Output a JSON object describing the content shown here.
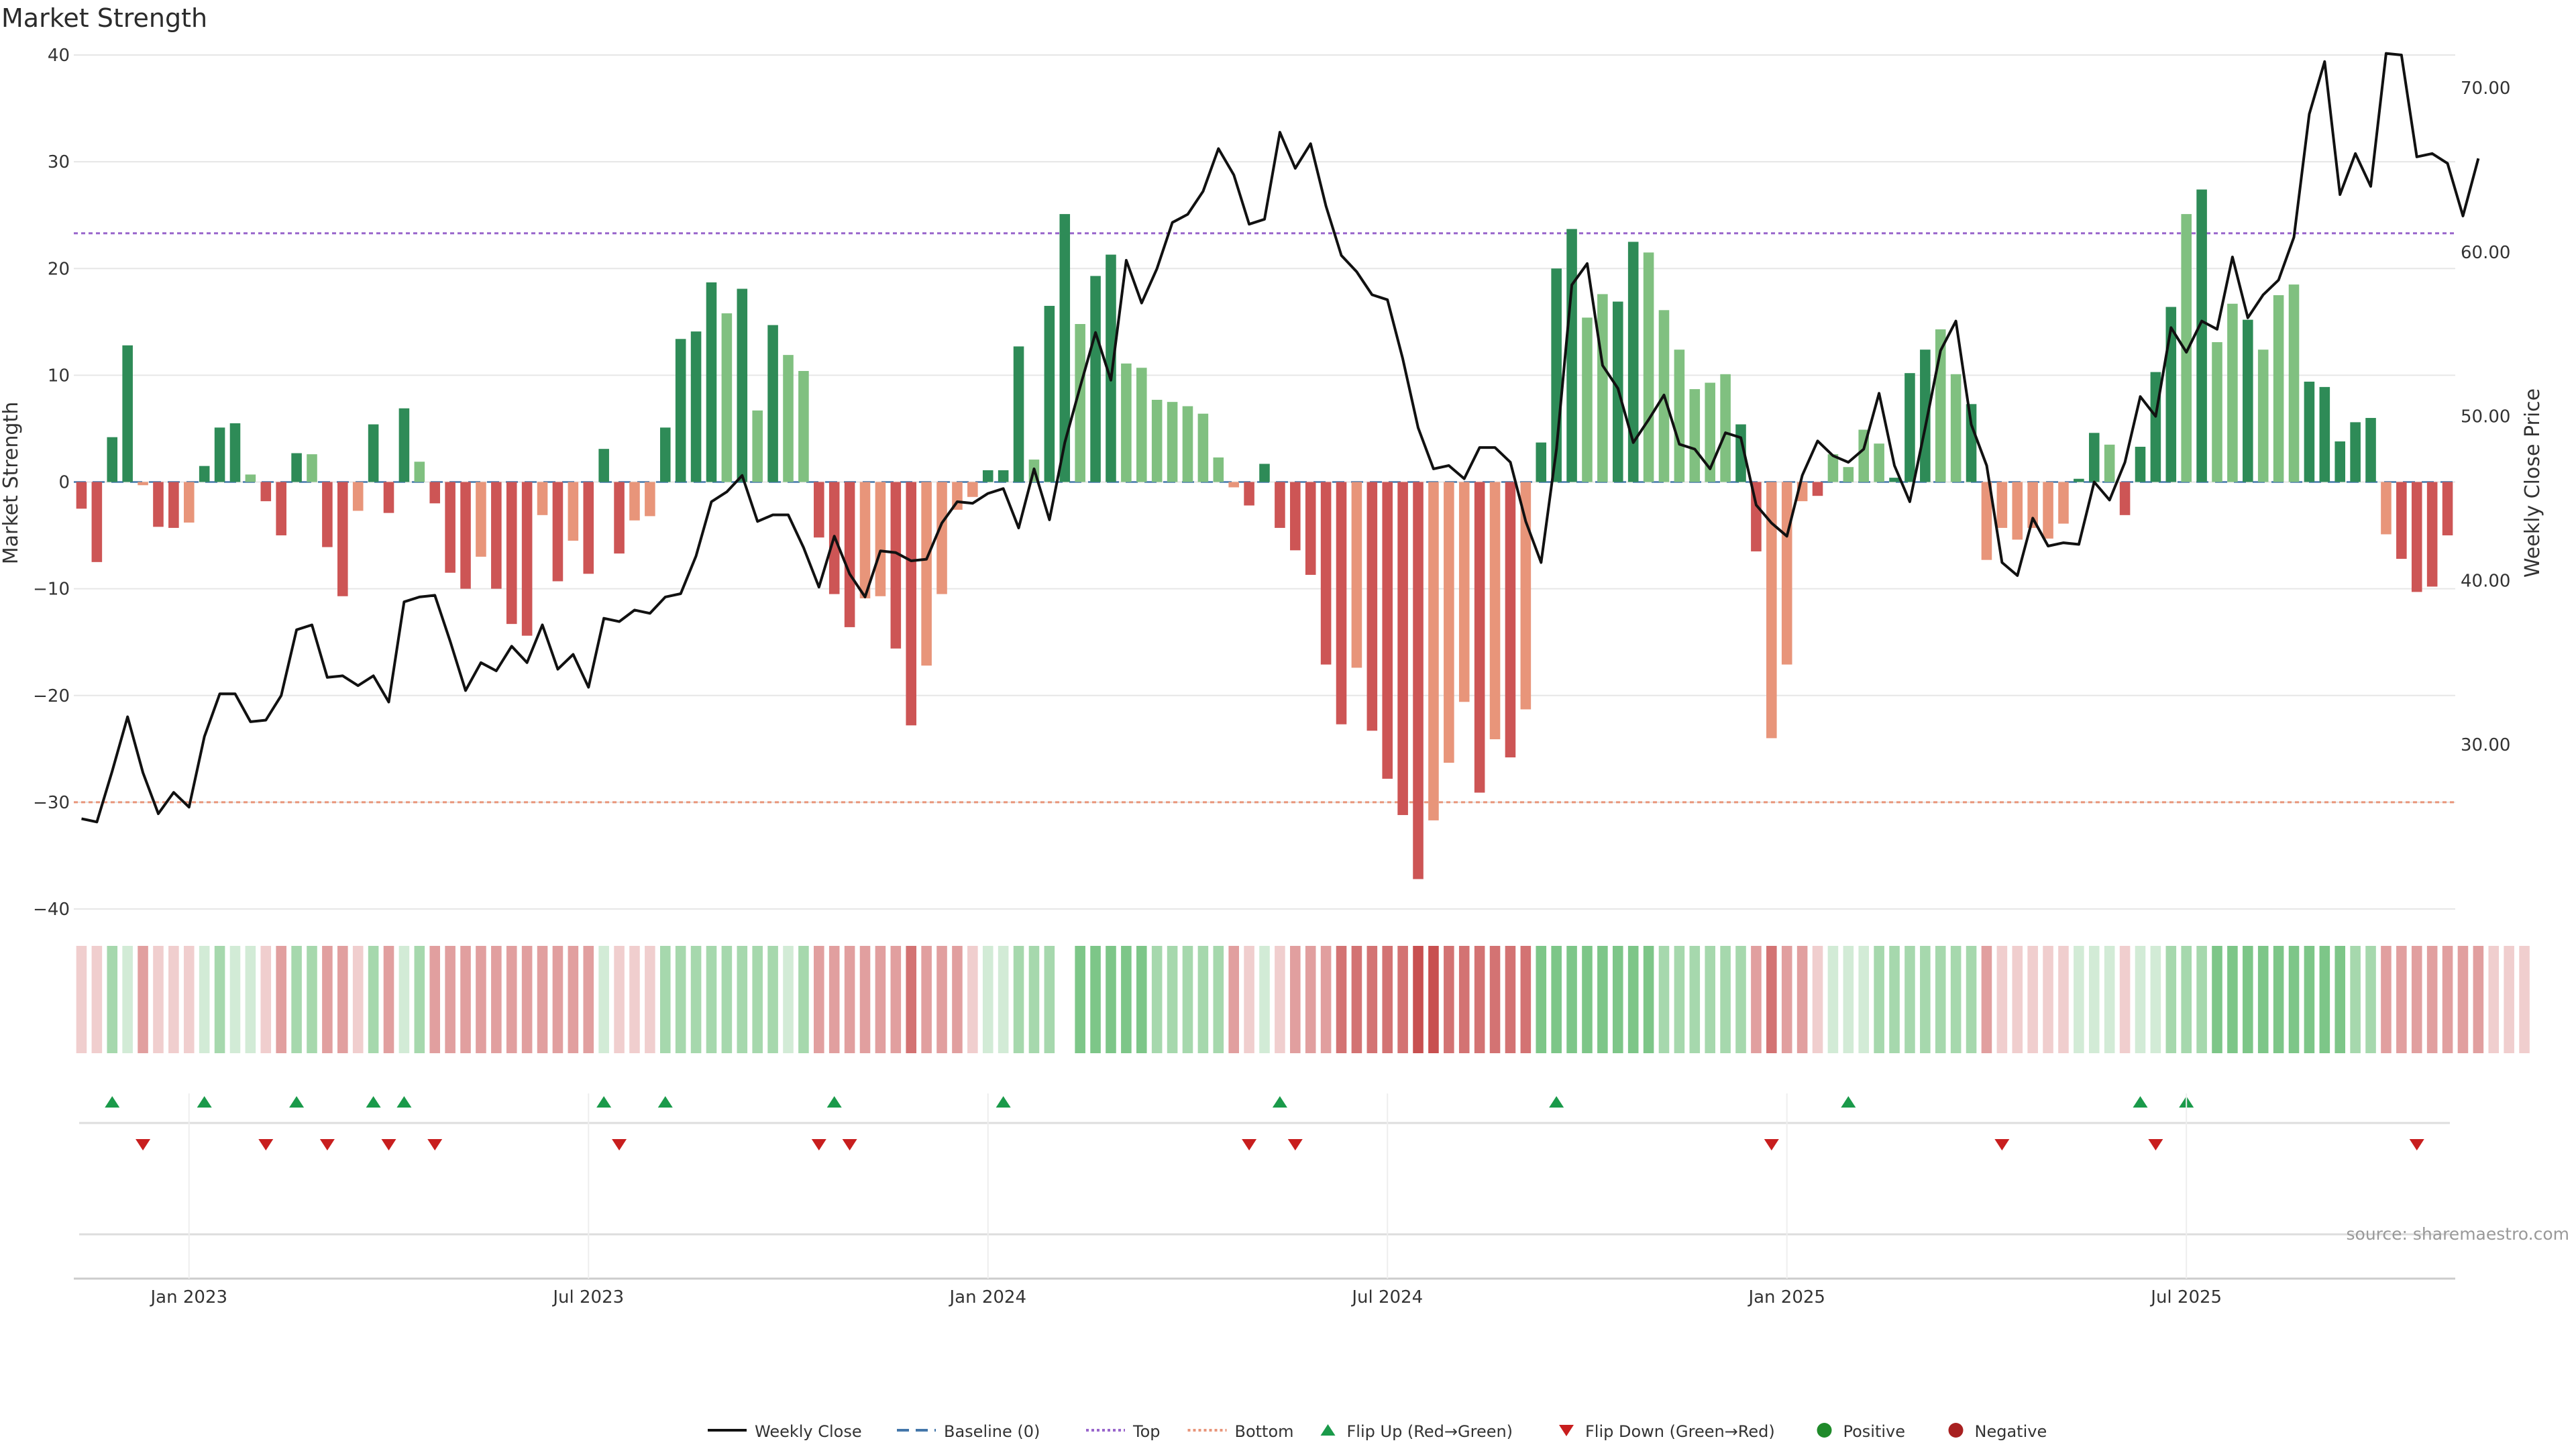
{
  "chart_data": {
    "type": "bar",
    "title": "Market Strength",
    "ylabel": "Market Strength",
    "ylabel_right": "Weekly Close Price",
    "ylim": [
      -40,
      40
    ],
    "ylim_right": [
      20,
      72
    ],
    "yticks": [
      -40,
      -30,
      -20,
      -10,
      0,
      10,
      20,
      30,
      40
    ],
    "yticks_right": [
      "30.00",
      "40.00",
      "50.00",
      "60.00",
      "70.00"
    ],
    "yticks_right_values": [
      30,
      40,
      50,
      60,
      70
    ],
    "xticks": [
      "Jan 2023",
      "Jul 2023",
      "Jan 2024",
      "Jul 2024",
      "Jan 2025",
      "Jul 2025"
    ],
    "xticks_index": [
      7,
      33,
      59,
      85,
      111,
      137
    ],
    "top_line": 23.3,
    "bottom_line": -30.0,
    "source": "source: sharemaestro.com",
    "colors": {
      "strong_pos": "#2e8b57",
      "weak_pos": "#80c080",
      "strong_neg": "#cd5555",
      "weak_neg": "#e8957a",
      "price": "#111111",
      "baseline": "#4477aa",
      "top": "#9966cc",
      "bottom": "#e8957a",
      "flip_up": "#1a9a4a",
      "flip_down": "#c81e1e",
      "positive": "#1f8a2a",
      "negative": "#a82020"
    },
    "strength": [
      -2.5,
      -7.5,
      4.2,
      12.8,
      -0.3,
      -4.2,
      -4.3,
      -3.8,
      1.5,
      5.1,
      5.5,
      0.7,
      -1.8,
      -5,
      2.7,
      2.6,
      -6.1,
      -10.7,
      -2.7,
      5.4,
      -2.9,
      6.9,
      1.9,
      -2,
      -8.5,
      -10,
      -7,
      -10,
      -13.3,
      -14.4,
      -3.1,
      -9.3,
      -5.5,
      -8.6,
      3.1,
      -6.7,
      -3.6,
      -3.2,
      5.1,
      13.4,
      14.1,
      18.7,
      15.8,
      18.1,
      6.7,
      14.7,
      11.9,
      10.4,
      -5.2,
      -10.5,
      -13.6,
      -10.9,
      -10.7,
      -15.6,
      -22.8,
      -17.2,
      -10.5,
      -2.6,
      -1.4,
      1.1,
      1.1,
      12.7,
      2.1,
      16.5,
      25.1,
      14.8,
      19.3,
      21.3,
      11.1,
      10.7,
      7.7,
      7.5,
      7.1,
      6.4,
      2.3,
      -0.5,
      -2.2,
      1.7,
      -4.3,
      -6.4,
      -8.7,
      -17.1,
      -22.7,
      -17.4,
      -23.3,
      -27.8,
      -31.2,
      -37.2,
      -31.7,
      -26.3,
      -20.6,
      -29.1,
      -24.1,
      -25.8,
      -21.3,
      3.7,
      20,
      23.7,
      15.4,
      17.6,
      16.9,
      22.5,
      21.5,
      16.1,
      12.4,
      8.7,
      9.3,
      10.1,
      5.4,
      -6.5,
      -24,
      -17.1,
      -1.8,
      -1.3,
      2.6,
      1.4,
      4.9,
      3.6,
      0.4,
      10.2,
      12.4,
      14.3,
      10.1,
      7.3,
      -7.3,
      -4.3,
      -5.4,
      -4.3,
      -5.3,
      -3.9,
      0.3,
      4.6,
      3.5,
      -3.1,
      3.3,
      10.3,
      16.4,
      25.1,
      27.4,
      13.1,
      16.7,
      15.2,
      12.4,
      17.5,
      18.5,
      9.4,
      8.9,
      3.8,
      5.6,
      6,
      -4.9,
      -7.2,
      -10.3,
      -9.8,
      -5
    ],
    "strength_weak": [
      0,
      0,
      0,
      0,
      1,
      0,
      0,
      1,
      0,
      0,
      0,
      1,
      0,
      0,
      0,
      1,
      0,
      0,
      1,
      0,
      0,
      0,
      1,
      0,
      0,
      0,
      1,
      0,
      0,
      0,
      1,
      0,
      1,
      0,
      0,
      0,
      1,
      1,
      0,
      0,
      0,
      0,
      1,
      0,
      1,
      0,
      1,
      1,
      0,
      0,
      0,
      1,
      1,
      0,
      0,
      1,
      1,
      1,
      1,
      0,
      0,
      0,
      1,
      0,
      0,
      1,
      0,
      0,
      1,
      1,
      1,
      1,
      1,
      1,
      1,
      1,
      0,
      0,
      0,
      0,
      0,
      0,
      0,
      1,
      0,
      0,
      0,
      0,
      1,
      1,
      1,
      0,
      1,
      0,
      1,
      0,
      0,
      0,
      1,
      1,
      0,
      0,
      1,
      1,
      1,
      1,
      1,
      1,
      0,
      0,
      1,
      1,
      1,
      0,
      1,
      1,
      1,
      1,
      0,
      0,
      0,
      1,
      1,
      0,
      1,
      1,
      1,
      1,
      1,
      1,
      0,
      0,
      1,
      0,
      0,
      0,
      0,
      1,
      0,
      1,
      1,
      0,
      1,
      1,
      1,
      0,
      0,
      0,
      0,
      0,
      1
    ],
    "price": [
      25.5,
      25.3,
      28.4,
      31.7,
      28.3,
      25.8,
      27.1,
      26.2,
      30.5,
      33.1,
      33.1,
      31.4,
      31.5,
      33.0,
      37.0,
      37.3,
      34.1,
      34.2,
      33.6,
      34.2,
      32.6,
      38.7,
      39.0,
      39.1,
      36.3,
      33.3,
      35.0,
      34.5,
      36.0,
      35.0,
      37.3,
      34.6,
      35.5,
      33.5,
      37.7,
      37.5,
      38.2,
      38.0,
      39.0,
      39.2,
      41.5,
      44.8,
      45.4,
      46.4,
      43.6,
      44.0,
      44.0,
      42.0,
      39.6,
      42.7,
      40.4,
      39.0,
      41.8,
      41.7,
      41.2,
      41.3,
      43.5,
      44.8,
      44.7,
      45.3,
      45.6,
      43.2,
      46.8,
      43.7,
      48.4,
      51.8,
      55.1,
      52.2,
      59.5,
      56.9,
      59.0,
      61.8,
      62.3,
      63.7,
      66.3,
      64.7,
      61.7,
      62.0,
      67.3,
      65.1,
      66.6,
      62.8,
      59.8,
      58.8,
      57.4,
      57.1,
      53.5,
      49.3,
      46.8,
      47.0,
      46.2,
      48.1,
      48.1,
      47.2,
      43.6,
      41.1,
      48.0,
      58.0,
      59.3,
      53.1,
      51.7,
      48.4,
      49.8,
      51.3,
      48.3,
      48.0,
      46.8,
      49.0,
      48.7,
      44.6,
      43.5,
      42.7,
      46.4,
      48.5,
      47.6,
      47.2,
      48.0,
      51.4,
      47.0,
      44.8,
      49.3,
      54.0,
      55.8,
      49.5,
      47.0,
      41.1,
      40.3,
      43.8,
      42.1,
      42.3,
      42.2,
      46.0,
      44.9,
      47.2,
      51.2,
      50.0,
      55.4,
      53.9,
      55.8,
      55.3,
      59.7,
      56.0,
      57.4,
      58.3,
      60.9,
      68.4,
      71.6,
      63.5,
      66.0,
      64.0,
      72.1,
      72.0,
      65.8,
      66.0,
      65.4,
      62.2,
      65.7
    ],
    "heat_levels": [
      1,
      1,
      2,
      1,
      2,
      1,
      1,
      1,
      1,
      2,
      1,
      1,
      1,
      2,
      2,
      2,
      2,
      2,
      1,
      2,
      2,
      1,
      2,
      2,
      2,
      2,
      2,
      2,
      2,
      2,
      2,
      2,
      2,
      2,
      1,
      1,
      1,
      1,
      2,
      2,
      2,
      2,
      2,
      2,
      2,
      2,
      1,
      2,
      2,
      2,
      2,
      2,
      2,
      2,
      3,
      2,
      2,
      2,
      1,
      1,
      1,
      2,
      2,
      2,
      -1,
      3,
      3,
      3,
      3,
      3,
      2,
      2,
      2,
      2,
      2,
      2,
      1,
      1,
      1,
      2,
      2,
      2,
      3,
      3,
      3,
      3,
      3,
      4,
      4,
      3,
      3,
      3,
      3,
      3,
      3,
      3,
      3,
      3,
      3,
      3,
      3,
      3,
      3,
      2,
      2,
      2,
      2,
      2,
      2,
      2,
      3,
      2,
      2,
      1,
      1,
      1,
      1,
      2,
      2,
      2,
      2,
      2,
      2,
      2,
      2,
      1,
      1,
      1,
      1,
      1,
      1,
      1,
      1,
      1,
      1,
      1,
      2,
      2,
      2,
      3,
      3,
      3,
      3,
      3,
      3,
      3,
      3,
      3,
      2,
      2,
      2,
      2,
      2,
      2,
      2,
      2,
      2,
      1,
      1,
      1
    ],
    "flip_up_index": [
      2,
      8,
      14,
      19,
      21,
      34,
      38,
      49,
      60,
      78,
      96,
      115,
      134,
      137
    ],
    "flip_down_index": [
      4,
      12,
      16,
      20,
      23,
      35,
      48,
      50,
      76,
      79,
      110,
      125,
      135,
      152
    ]
  },
  "legend": [
    {
      "label": "Weekly Close",
      "kind": "line",
      "color": "#111111",
      "dash": ""
    },
    {
      "label": "Baseline (0)",
      "kind": "line",
      "color": "#4477aa",
      "dash": "18 10"
    },
    {
      "label": "Top",
      "kind": "line",
      "color": "#9966cc",
      "dash": "4 4"
    },
    {
      "label": "Bottom",
      "kind": "line",
      "color": "#e8957a",
      "dash": "4 4"
    },
    {
      "label": "Flip Up (Red→Green)",
      "kind": "tri-up",
      "color": "#1a9a4a"
    },
    {
      "label": "Flip Down (Green→Red)",
      "kind": "tri-down",
      "color": "#c81e1e"
    },
    {
      "label": "Positive",
      "kind": "dot",
      "color": "#1f8a2a"
    },
    {
      "label": "Negative",
      "kind": "dot",
      "color": "#a82020"
    }
  ]
}
